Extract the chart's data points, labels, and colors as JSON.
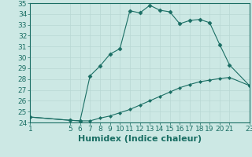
{
  "xlabel": "Humidex (Indice chaleur)",
  "bg_color": "#cce8e4",
  "line_color": "#1a6e64",
  "marker_color": "#1a6e64",
  "xlim": [
    1,
    23
  ],
  "ylim": [
    24,
    35
  ],
  "xticks": [
    1,
    5,
    6,
    7,
    8,
    9,
    10,
    11,
    12,
    13,
    14,
    15,
    16,
    17,
    18,
    19,
    20,
    21,
    23
  ],
  "yticks": [
    24,
    25,
    26,
    27,
    28,
    29,
    30,
    31,
    32,
    33,
    34,
    35
  ],
  "series1_x": [
    1,
    5,
    6,
    7,
    8,
    9,
    10,
    11,
    12,
    13,
    14,
    15,
    16,
    17,
    18,
    19,
    20,
    21,
    23
  ],
  "series1_y": [
    24.5,
    24.2,
    24.15,
    24.15,
    24.4,
    24.6,
    24.9,
    25.2,
    25.6,
    26.0,
    26.4,
    26.8,
    27.2,
    27.5,
    27.75,
    27.9,
    28.05,
    28.15,
    27.4
  ],
  "series2_x": [
    1,
    5,
    6,
    7,
    8,
    9,
    10,
    11,
    12,
    13,
    14,
    15,
    16,
    17,
    18,
    19,
    20,
    21,
    23
  ],
  "series2_y": [
    24.5,
    24.2,
    24.15,
    28.3,
    29.2,
    30.3,
    30.8,
    34.3,
    34.1,
    34.8,
    34.35,
    34.2,
    33.1,
    33.4,
    33.5,
    33.2,
    31.2,
    29.3,
    27.4
  ],
  "grid_color": "#b8d8d4",
  "tick_fontsize": 6.5,
  "label_fontsize": 8
}
